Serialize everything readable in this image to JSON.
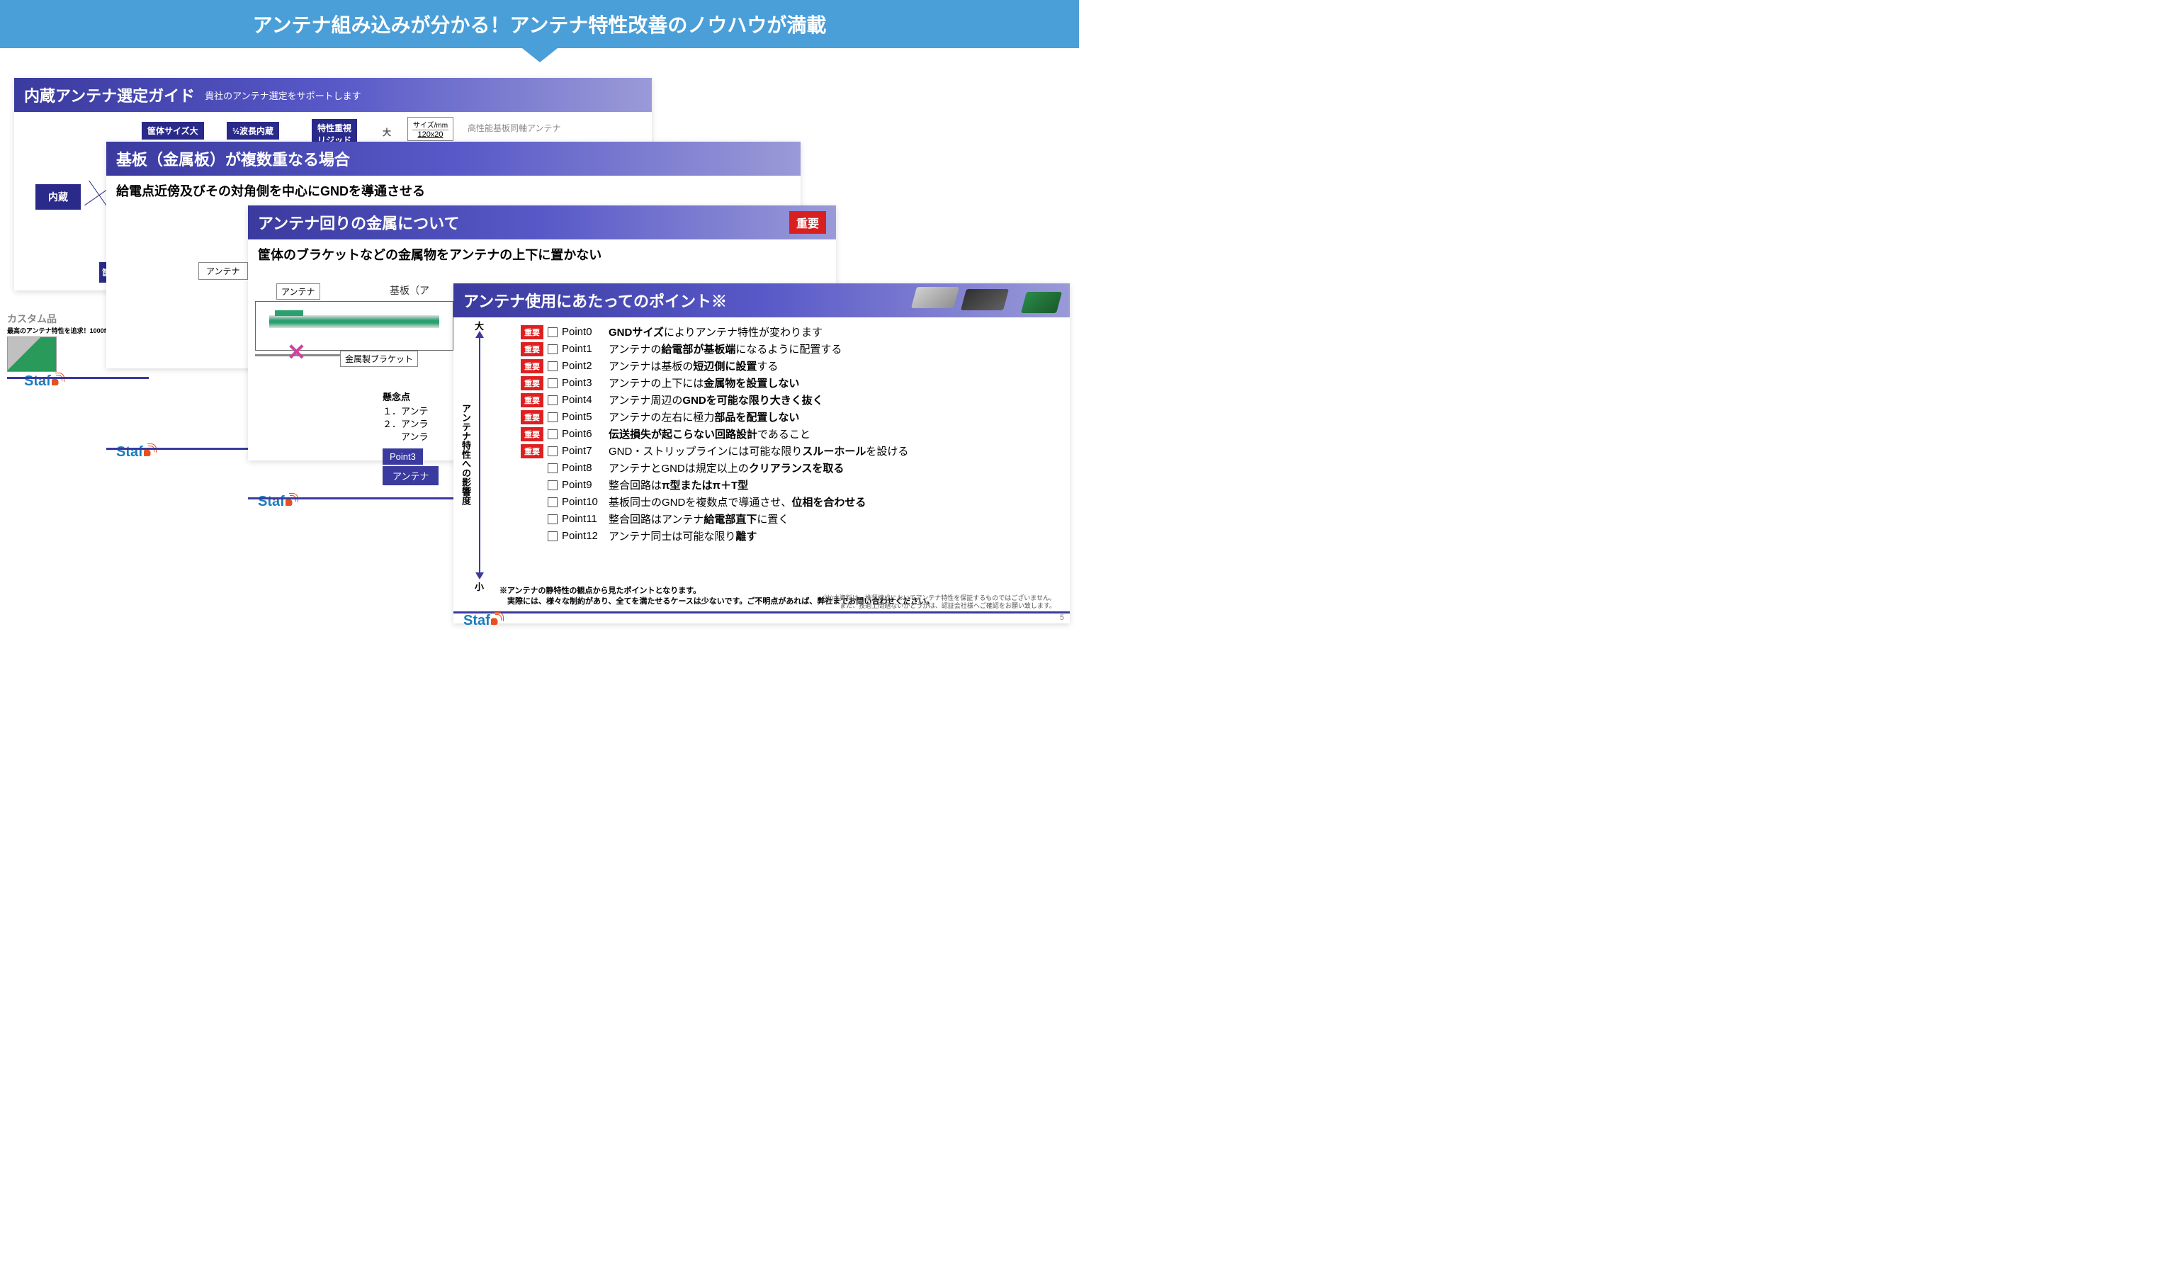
{
  "banner": "アンテナ組み込みが分かる！アンテナ特性改善のノウハウが満載",
  "logo": "Staf",
  "slide1": {
    "title": "内蔵アンテナ選定ガイド",
    "subtitle": "貴社のアンテナ選定をサポートします",
    "nodes": {
      "internal": "内蔵",
      "case_large": "筐体サイズ大",
      "half_wave": "½波長内蔵",
      "rigid": "特性重視\nリジッド",
      "large": "大",
      "size_hdr": "サイズ/mm",
      "size_val": "120x20",
      "coax": "高性能基板同軸アンテナ",
      "chassis_label": "筐"
    },
    "custom": "カスタム品",
    "custom_sub": "最高のアンテナ特性を追求！1000f"
  },
  "slide2": {
    "title": "基板（金属板）が複数重なる場合",
    "sub": "給電点近傍及びその対角側を中心にGNDを導通させる",
    "antenna_label": "アンテナ"
  },
  "slide3": {
    "title": "アンテナ回りの金属について",
    "important": "重要",
    "sub": "筐体のブラケットなどの金属物をアンテナの上下に置かない",
    "labels": {
      "antenna": "アンテナ",
      "pcb": "基板（ア",
      "bracket": "金属製ブラケット"
    },
    "concern_hdr": "懸念点",
    "concerns": [
      "１．アンテ",
      "２．アンラ",
      "　　アンラ"
    ],
    "point3_tag": "Point3",
    "point3_txt": "アンテナ"
  },
  "slide4": {
    "title": "アンテナ使用にあたってのポイント※",
    "axis": {
      "label": "アンテナ特性への影響度",
      "top": "大",
      "bottom": "小"
    },
    "important": "重要",
    "points": [
      {
        "i": true,
        "id": "Point0",
        "t1": "GNDサイズ",
        "t2": "によりアンテナ特性が変わります"
      },
      {
        "i": true,
        "id": "Point1",
        "t1": "アンテナの",
        "b": "給電部が基板端",
        "t2": "になるように配置する"
      },
      {
        "i": true,
        "id": "Point2",
        "t1": "アンテナは基板の",
        "b": "短辺側に設置",
        "t2": "する"
      },
      {
        "i": true,
        "id": "Point3",
        "t1": "アンテナの上下には",
        "b": "金属物を設置しない",
        "t2": ""
      },
      {
        "i": true,
        "id": "Point4",
        "t1": "アンテナ周辺の",
        "b": "GNDを可能な限り大きく抜く",
        "t2": ""
      },
      {
        "i": true,
        "id": "Point5",
        "t1": "アンテナの左右に極力",
        "b": "部品を配置しない",
        "t2": ""
      },
      {
        "i": true,
        "id": "Point6",
        "t1": "",
        "b": "伝送損失が起こらない回路設計",
        "t2": "であること"
      },
      {
        "i": true,
        "id": "Point7",
        "t1": " GND・ストリップラインには可能な限り",
        "b": "スルーホール",
        "t2": "を設ける"
      },
      {
        "i": false,
        "id": "Point8",
        "t1": "アンテナとGNDは規定以上の",
        "b": "クリアランスを取る",
        "t2": ""
      },
      {
        "i": false,
        "id": "Point9",
        "t1": "整合回路は",
        "b": "π型またはπ＋T型",
        "t2": ""
      },
      {
        "i": false,
        "id": "Point10",
        "t1": "基板同士のGNDを複数点で導通させ、",
        "b": "位相を合わせる",
        "t2": ""
      },
      {
        "i": false,
        "id": "Point11",
        "t1": "整合回路はアンテナ",
        "b": "給電部直下",
        "t2": "に置く"
      },
      {
        "i": false,
        "id": "Point12",
        "t1": "アンテナ同士は可能な限り",
        "b": "離す",
        "t2": ""
      }
    ],
    "note1": "※アンテナの静特性の観点から見たポイントとなります。",
    "note2": "　実際には、様々な制約があり、全てを満たせるケースは少ないです。ご不明点があれば、弊社までお問い合わせください。",
    "footnote1": "(注)本資料は、推奨構成においてアンテナ特性を保証するものではございません。",
    "footnote2": "また、技適上問題ないかどうかは、認証会社様へご確認をお願い致します。",
    "page": "5"
  }
}
